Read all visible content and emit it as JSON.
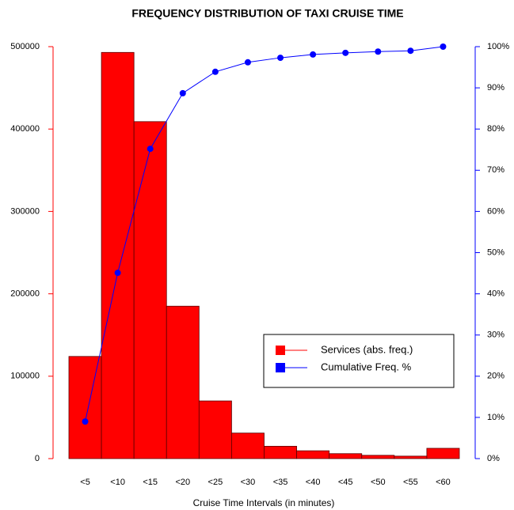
{
  "chart_data": {
    "type": "bar",
    "title": "FREQUENCY DISTRIBUTION OF TAXI CRUISE TIME",
    "x_label": "Cruise Time Intervals (in minutes)",
    "categories": [
      "<5",
      "<10",
      "<15",
      "<20",
      "<25",
      "<30",
      "<35",
      "<40",
      "<45",
      "<50",
      "<55",
      "<60"
    ],
    "series": [
      {
        "name": "Services (abs. freq.)",
        "color": "#ff0000",
        "type": "bar",
        "values": [
          124000,
          493000,
          409000,
          185000,
          70000,
          31000,
          15000,
          9500,
          6000,
          4000,
          3000,
          12500
        ]
      },
      {
        "name": "Cumulative Freq. %",
        "color": "#0000ff",
        "type": "line",
        "axis": "y2",
        "values": [
          9,
          45.1,
          75.2,
          88.7,
          93.9,
          96.2,
          97.3,
          98.1,
          98.5,
          98.8,
          99,
          100
        ]
      }
    ],
    "ylim": [
      0,
      500000
    ],
    "yticks": [
      0,
      100000,
      200000,
      300000,
      400000,
      500000
    ],
    "y2lim": [
      0,
      100
    ],
    "y2ticks": [
      {
        "value": 0,
        "label": "0%"
      },
      {
        "value": 10,
        "label": "10%"
      },
      {
        "value": 20,
        "label": "20%"
      },
      {
        "value": 30,
        "label": "30%"
      },
      {
        "value": 40,
        "label": "40%"
      },
      {
        "value": 50,
        "label": "50%"
      },
      {
        "value": 60,
        "label": "60%"
      },
      {
        "value": 70,
        "label": "70%"
      },
      {
        "value": 80,
        "label": "80%"
      },
      {
        "value": 90,
        "label": "90%"
      },
      {
        "value": 100,
        "label": "100%"
      }
    ],
    "legend": "right"
  }
}
